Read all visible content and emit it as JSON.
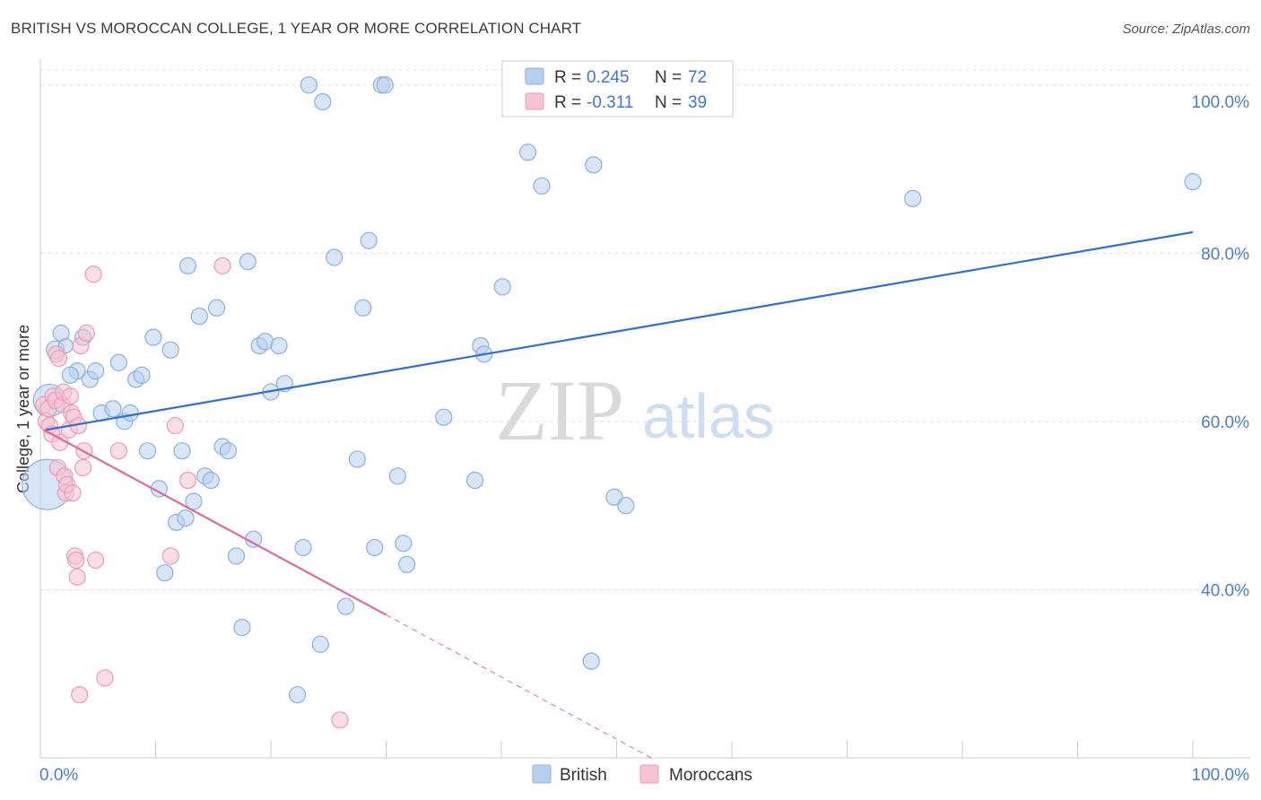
{
  "header": {
    "title": "BRITISH VS MOROCCAN COLLEGE, 1 YEAR OR MORE CORRELATION CHART",
    "source": "Source: ZipAtlas.com"
  },
  "watermark": {
    "part1": "ZIP",
    "part2": "atlas"
  },
  "legend": {
    "british": {
      "r_label": "R = ",
      "r_value": "0.245",
      "n_label": "N = ",
      "n_value": "72"
    },
    "moroccans": {
      "r_label": "R = ",
      "r_value": "-0.311",
      "n_label": "N = ",
      "n_value": "39"
    }
  },
  "colors": {
    "british_fill": "#b8d0f0",
    "british_stroke": "#8ab0e0",
    "british_line": "#2f6fcf",
    "moroccan_fill": "#f6c3d2",
    "moroccan_stroke": "#ec9ab5",
    "moroccan_line": "#e06a95",
    "grid": "#dddddd",
    "axis_label": "#4a7fd0"
  },
  "chart_data": {
    "type": "scatter",
    "title": "BRITISH VS MOROCCAN COLLEGE, 1 YEAR OR MORE CORRELATION CHART",
    "xlabel": "",
    "ylabel": "College, 1 year or more",
    "xlim": [
      0,
      100
    ],
    "ylim": [
      20,
      102
    ],
    "x_tick_labels": [
      {
        "value": 0,
        "label": "0.0%"
      },
      {
        "value": 100,
        "label": "100.0%"
      }
    ],
    "y_ticks": [
      {
        "value": 40,
        "label": "40.0%"
      },
      {
        "value": 60,
        "label": "60.0%"
      },
      {
        "value": 80,
        "label": "80.0%"
      },
      {
        "value": 100,
        "label": "100.0%"
      }
    ],
    "bottom_legend": [
      "British",
      "Moroccans"
    ],
    "series": [
      {
        "name": "British",
        "r": 0.245,
        "n": 72,
        "trend": {
          "x0": 0.5,
          "y0": 59.0,
          "x1": 100,
          "y1": 82.5
        },
        "points": [
          [
            0.6,
            52.5,
            28
          ],
          [
            0.8,
            62.5,
            18
          ],
          [
            1.3,
            68.5,
            10
          ],
          [
            1.8,
            70.5,
            9
          ],
          [
            2.2,
            69.0,
            8
          ],
          [
            3.2,
            66.0,
            9
          ],
          [
            3.7,
            70.0,
            9
          ],
          [
            4.3,
            65.0,
            9
          ],
          [
            4.8,
            66.0,
            9
          ],
          [
            5.3,
            61.0,
            9
          ],
          [
            6.3,
            61.5,
            9
          ],
          [
            6.8,
            67.0,
            9
          ],
          [
            7.3,
            60.0,
            9
          ],
          [
            7.8,
            61.0,
            9
          ],
          [
            8.3,
            65.0,
            9
          ],
          [
            8.8,
            65.5,
            9
          ],
          [
            9.3,
            56.5,
            9
          ],
          [
            9.8,
            70.0,
            9
          ],
          [
            10.3,
            52.0,
            9
          ],
          [
            10.8,
            42.0,
            9
          ],
          [
            11.3,
            68.5,
            9
          ],
          [
            11.8,
            48.0,
            9
          ],
          [
            12.3,
            56.5,
            9
          ],
          [
            12.8,
            78.5,
            9
          ],
          [
            13.3,
            50.5,
            9
          ],
          [
            13.8,
            72.5,
            9
          ],
          [
            14.3,
            53.5,
            9
          ],
          [
            14.8,
            53.0,
            9
          ],
          [
            15.3,
            73.5,
            9
          ],
          [
            15.8,
            57.0,
            9
          ],
          [
            16.3,
            56.5,
            9
          ],
          [
            17.0,
            44.0,
            9
          ],
          [
            17.5,
            35.5,
            9
          ],
          [
            18.0,
            79.0,
            9
          ],
          [
            18.5,
            46.0,
            9
          ],
          [
            19.0,
            69.0,
            9
          ],
          [
            19.5,
            69.5,
            9
          ],
          [
            20.0,
            63.5,
            9
          ],
          [
            20.7,
            69.0,
            9
          ],
          [
            21.2,
            64.5,
            9
          ],
          [
            22.3,
            27.5,
            9
          ],
          [
            22.8,
            45.0,
            9
          ],
          [
            23.3,
            100.0,
            9
          ],
          [
            24.3,
            33.5,
            9
          ],
          [
            24.5,
            98.0,
            9
          ],
          [
            25.5,
            79.5,
            9
          ],
          [
            26.5,
            38.0,
            9
          ],
          [
            27.5,
            55.5,
            9
          ],
          [
            28.0,
            73.5,
            9
          ],
          [
            28.5,
            81.5,
            9
          ],
          [
            29.0,
            45.0,
            9
          ],
          [
            29.6,
            100.0,
            9
          ],
          [
            29.9,
            100.0,
            9
          ],
          [
            31.0,
            53.5,
            9
          ],
          [
            31.5,
            45.5,
            9
          ],
          [
            31.8,
            43.0,
            9
          ],
          [
            35.0,
            60.5,
            9
          ],
          [
            37.7,
            53.0,
            9
          ],
          [
            38.2,
            69.0,
            9
          ],
          [
            38.5,
            68.0,
            9
          ],
          [
            40.1,
            76.0,
            9
          ],
          [
            42.3,
            92.0,
            9
          ],
          [
            43.5,
            88.0,
            9
          ],
          [
            47.8,
            31.5,
            9
          ],
          [
            48.0,
            90.5,
            9
          ],
          [
            49.8,
            51.0,
            9
          ],
          [
            50.8,
            50.0,
            9
          ],
          [
            52.5,
            100.0,
            9
          ],
          [
            75.7,
            86.5,
            9
          ],
          [
            100.0,
            88.5,
            9
          ],
          [
            12.6,
            48.5,
            9
          ],
          [
            2.6,
            65.5,
            9
          ]
        ]
      },
      {
        "name": "Moroccans",
        "r": -0.311,
        "n": 39,
        "trend": {
          "x0": 0.3,
          "y0": 59.0,
          "x1": 30.0,
          "y1": 37.0,
          "dash_to_x": 53,
          "dash_to_y": 20.0
        },
        "points": [
          [
            0.3,
            62.0,
            9
          ],
          [
            0.5,
            60.0,
            9
          ],
          [
            0.7,
            61.5,
            9
          ],
          [
            0.8,
            59.5,
            9
          ],
          [
            1.0,
            58.5,
            9
          ],
          [
            1.1,
            63.0,
            9
          ],
          [
            1.3,
            62.5,
            9
          ],
          [
            1.4,
            68.0,
            9
          ],
          [
            1.5,
            54.5,
            9
          ],
          [
            1.6,
            67.5,
            9
          ],
          [
            1.7,
            57.5,
            9
          ],
          [
            1.9,
            62.0,
            9
          ],
          [
            2.0,
            63.5,
            9
          ],
          [
            2.1,
            53.5,
            9
          ],
          [
            2.2,
            51.5,
            9
          ],
          [
            2.3,
            52.5,
            9
          ],
          [
            2.5,
            59.0,
            9
          ],
          [
            2.6,
            63.0,
            9
          ],
          [
            2.7,
            61.0,
            9
          ],
          [
            2.8,
            51.5,
            9
          ],
          [
            2.9,
            60.5,
            9
          ],
          [
            3.0,
            44.0,
            9
          ],
          [
            3.1,
            43.5,
            9
          ],
          [
            3.2,
            41.5,
            9
          ],
          [
            3.3,
            59.5,
            9
          ],
          [
            3.4,
            27.5,
            9
          ],
          [
            3.5,
            69.0,
            9
          ],
          [
            3.7,
            54.5,
            9
          ],
          [
            3.8,
            56.5,
            9
          ],
          [
            4.0,
            70.5,
            9
          ],
          [
            4.6,
            77.5,
            9
          ],
          [
            4.8,
            43.5,
            9
          ],
          [
            5.6,
            29.5,
            9
          ],
          [
            6.8,
            56.5,
            9
          ],
          [
            11.3,
            44.0,
            9
          ],
          [
            11.7,
            59.5,
            9
          ],
          [
            12.8,
            53.0,
            9
          ],
          [
            15.8,
            78.5,
            9
          ],
          [
            26.0,
            24.5,
            9
          ]
        ]
      }
    ]
  }
}
